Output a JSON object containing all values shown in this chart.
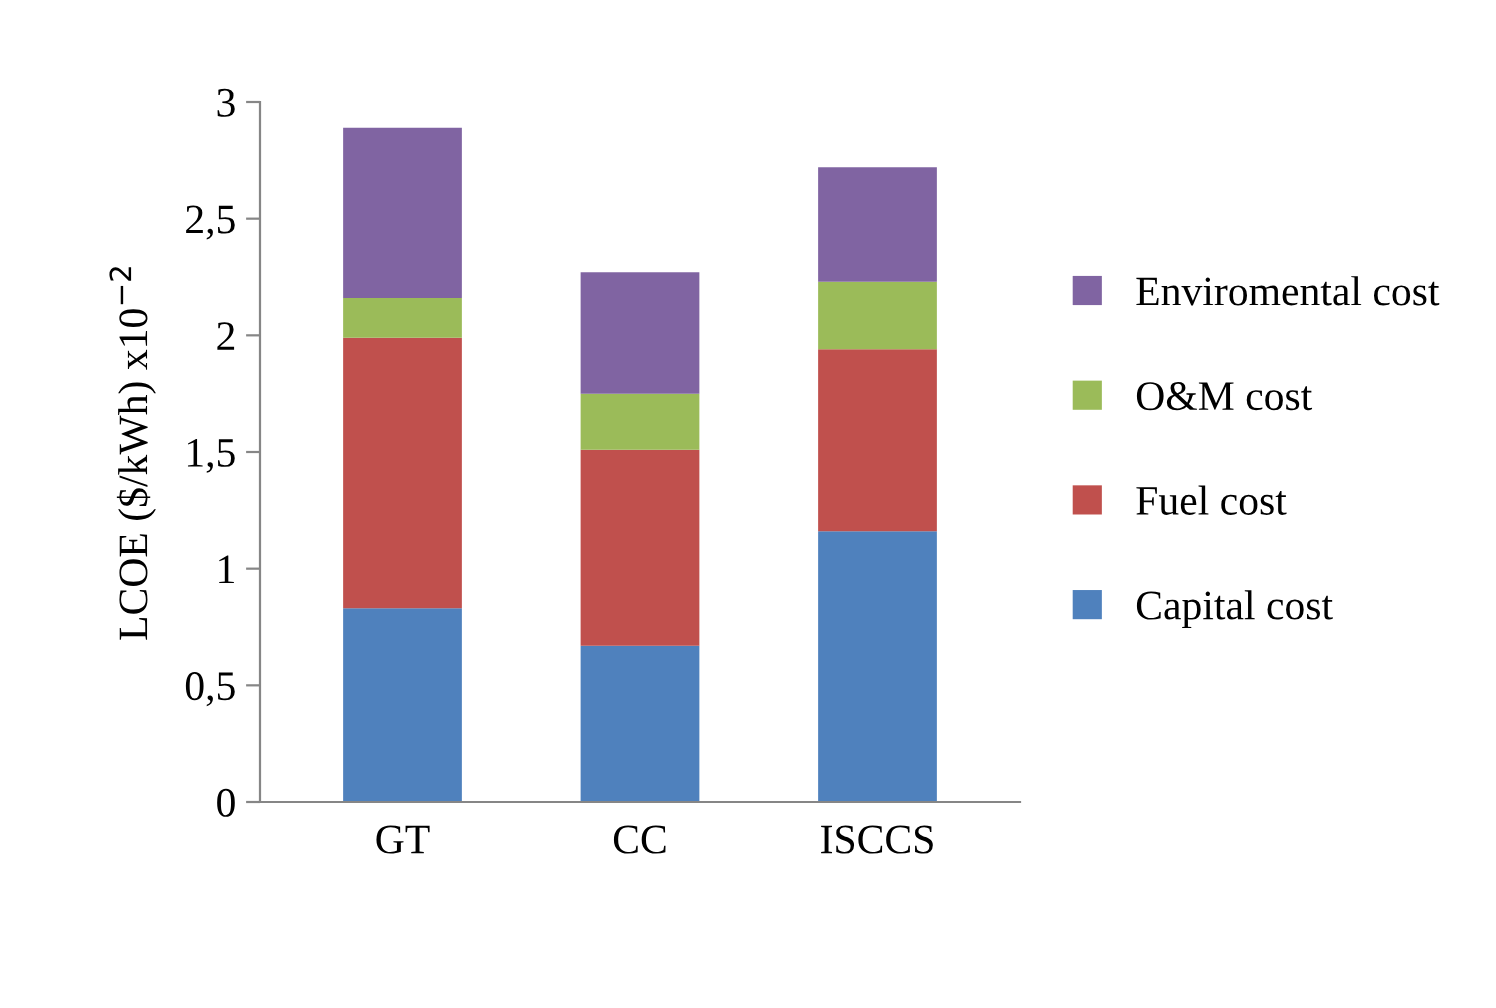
{
  "chart_data": {
    "type": "bar",
    "stacked": true,
    "ylabel": "LCOE ($/kWh) x10$^{−2}$",
    "categories": [
      "GT",
      "CC",
      "ISCCS"
    ],
    "series": [
      {
        "name": "Capital cost",
        "color": "#4f81bd",
        "values": [
          0.83,
          0.67,
          1.16
        ]
      },
      {
        "name": "Fuel cost",
        "color": "#c0504d",
        "values": [
          1.16,
          0.84,
          0.78
        ]
      },
      {
        "name": "O&M cost",
        "color": "#9bbb59",
        "values": [
          0.17,
          0.24,
          0.29
        ]
      },
      {
        "name": "Enviromental cost",
        "color": "#8064a2",
        "values": [
          0.73,
          0.52,
          0.49
        ]
      }
    ],
    "ylim": [
      0,
      3
    ],
    "yticks": [
      0,
      {
        "value": 0.5,
        "label": "0,5"
      },
      1,
      {
        "value": 1.5,
        "label": "1,5"
      },
      2,
      {
        "value": 2.5,
        "label": "2,5"
      },
      3
    ],
    "grid": false,
    "legend": "right"
  }
}
